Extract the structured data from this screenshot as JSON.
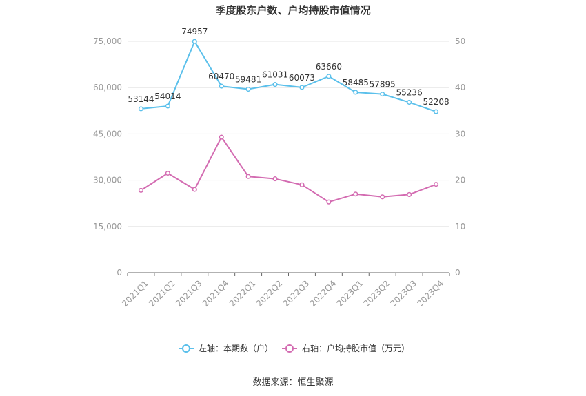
{
  "chart_data": {
    "type": "line",
    "title": "季度股东户数、户均持股市值情况",
    "categories": [
      "2021Q1",
      "2021Q2",
      "2021Q3",
      "2021Q4",
      "2022Q1",
      "2022Q2",
      "2022Q3",
      "2022Q4",
      "2023Q1",
      "2023Q2",
      "2023Q3",
      "2023Q4"
    ],
    "left_axis": {
      "ticks": [
        "0",
        "15,000",
        "30,000",
        "45,000",
        "60,000",
        "75,000"
      ],
      "ylim": [
        0,
        75000
      ]
    },
    "right_axis": {
      "ticks": [
        "0",
        "10",
        "20",
        "30",
        "40",
        "50"
      ],
      "ylim": [
        0,
        50
      ]
    },
    "series": [
      {
        "name": "左轴：本期数（户）",
        "axis": "left",
        "color": "#5bc0eb",
        "values": [
          53144,
          54014,
          74957,
          60470,
          59481,
          61031,
          60073,
          63660,
          58485,
          57895,
          55236,
          52208
        ],
        "labels": [
          "53144",
          "54014",
          "74957",
          "60470",
          "59481",
          "61031",
          "60073",
          "63660",
          "58485",
          "57895",
          "55236",
          "52208"
        ]
      },
      {
        "name": "右轴：户均持股市值（万元）",
        "axis": "right",
        "color": "#d36bb1",
        "values": [
          17.8,
          21.5,
          18.0,
          29.3,
          20.8,
          20.3,
          19.0,
          15.3,
          17.0,
          16.4,
          16.9,
          19.1
        ]
      }
    ],
    "grid": true,
    "legend_position": "bottom"
  },
  "source_text": "数据来源：恒生聚源"
}
